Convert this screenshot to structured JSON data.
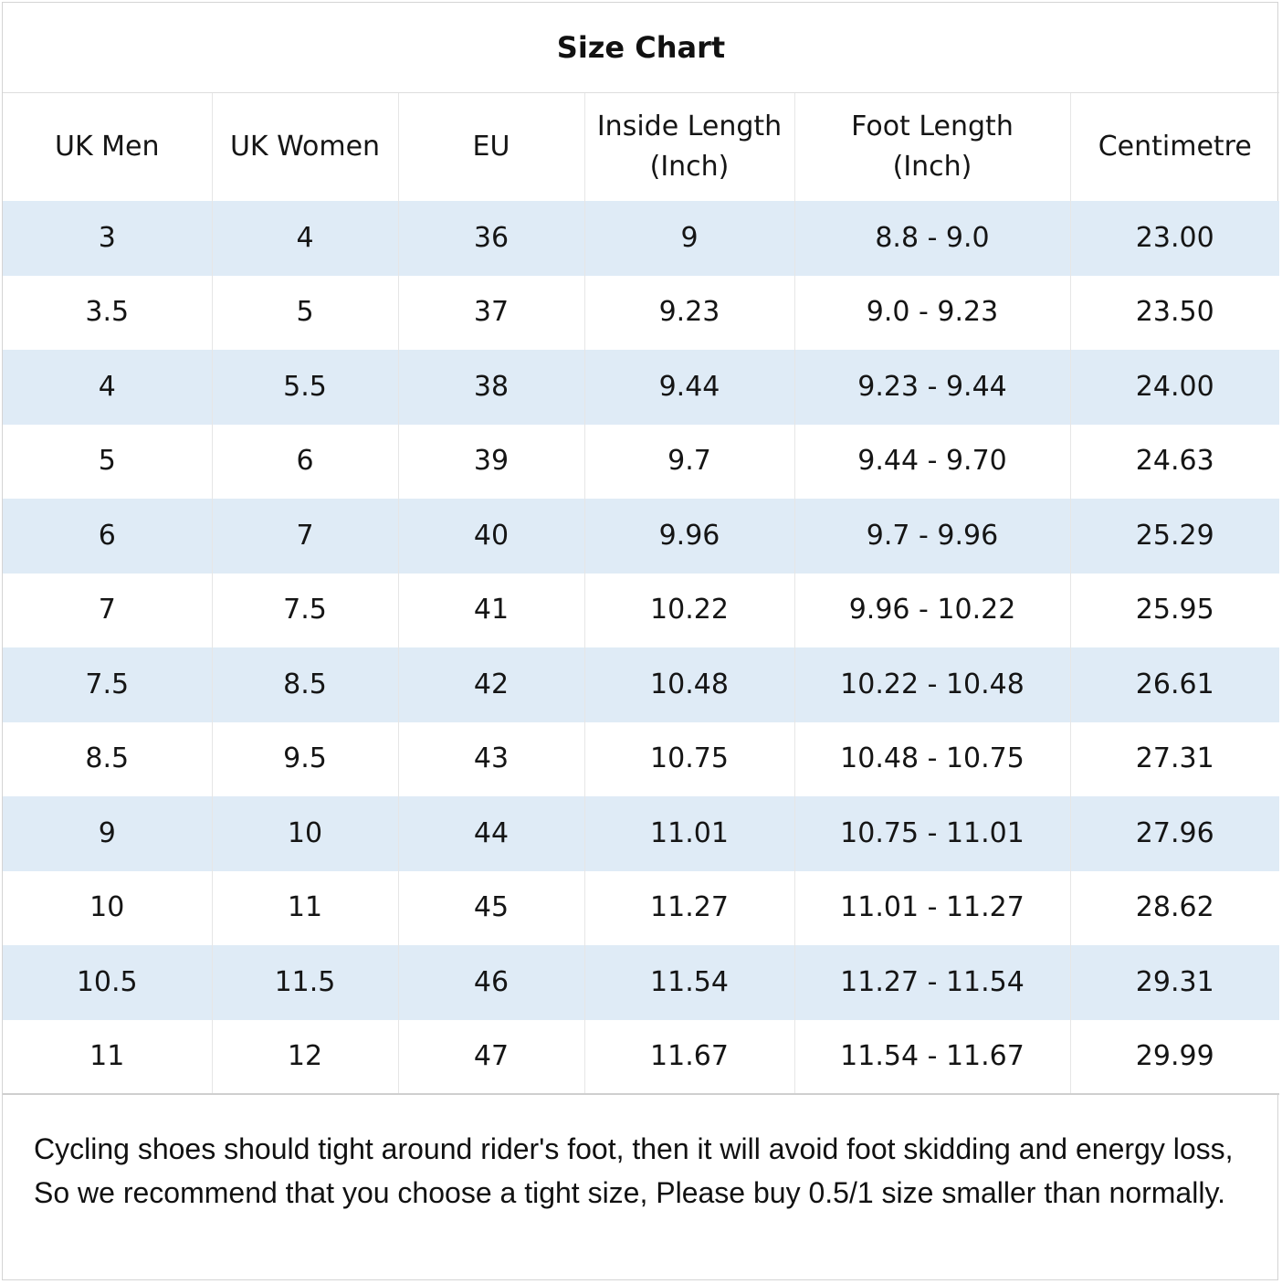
{
  "title": "Size Chart",
  "table": {
    "headers": [
      [
        "UK Men"
      ],
      [
        "UK Women"
      ],
      [
        "EU"
      ],
      [
        "Inside Length",
        "(Inch)"
      ],
      [
        "Foot Length",
        "(Inch)"
      ],
      [
        "Centimetre"
      ]
    ],
    "rows": [
      [
        "3",
        "4",
        "36",
        "9",
        "8.8 - 9.0",
        "23.00"
      ],
      [
        "3.5",
        "5",
        "37",
        "9.23",
        "9.0 - 9.23",
        "23.50"
      ],
      [
        "4",
        "5.5",
        "38",
        "9.44",
        "9.23 - 9.44",
        "24.00"
      ],
      [
        "5",
        "6",
        "39",
        "9.7",
        "9.44 - 9.70",
        "24.63"
      ],
      [
        "6",
        "7",
        "40",
        "9.96",
        "9.7 - 9.96",
        "25.29"
      ],
      [
        "7",
        "7.5",
        "41",
        "10.22",
        "9.96 - 10.22",
        "25.95"
      ],
      [
        "7.5",
        "8.5",
        "42",
        "10.48",
        "10.22 - 10.48",
        "26.61"
      ],
      [
        "8.5",
        "9.5",
        "43",
        "10.75",
        "10.48 - 10.75",
        "27.31"
      ],
      [
        "9",
        "10",
        "44",
        "11.01",
        "10.75 - 11.01",
        "27.96"
      ],
      [
        "10",
        "11",
        "45",
        "11.27",
        "11.01 - 11.27",
        "28.62"
      ],
      [
        "10.5",
        "11.5",
        "46",
        "11.54",
        "11.27 - 11.54",
        "29.31"
      ],
      [
        "11",
        "12",
        "47",
        "11.67",
        "11.54 - 11.67",
        "29.99"
      ]
    ]
  },
  "note": "Cycling shoes should tight around rider's foot, then it will avoid foot skidding and energy loss, So we recommend that you choose a tight size, Please buy 0.5/1 size smaller than normally.",
  "colors": {
    "stripe": "#dfebf6",
    "background": "#ffffff",
    "text": "#111111"
  }
}
